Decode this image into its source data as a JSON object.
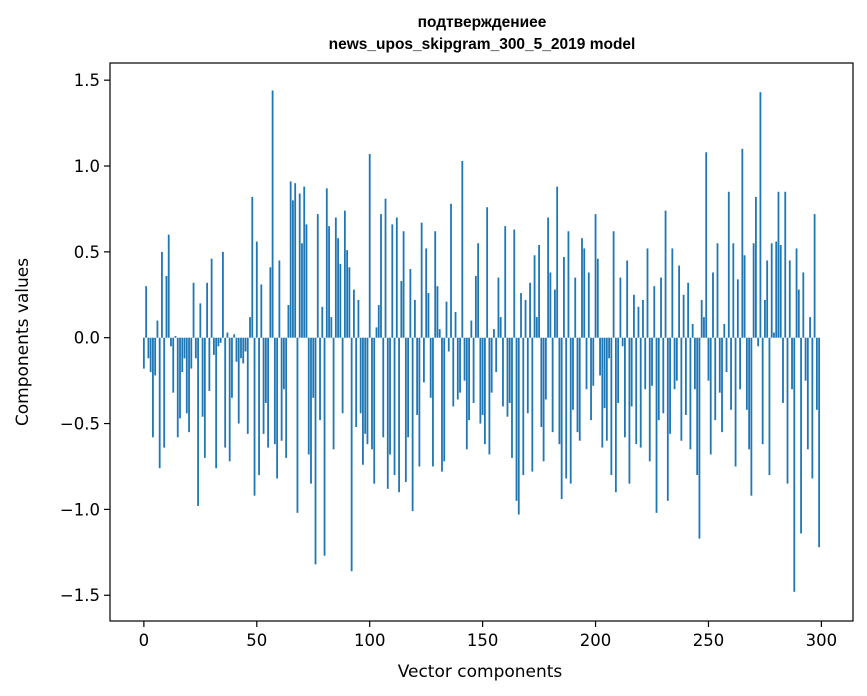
{
  "chart_data": {
    "type": "bar",
    "title": "подтверждениее\nnews_upos_skipgram_300_5_2019 model",
    "title_lines": [
      "подтверждениее",
      "news_upos_skipgram_300_5_2019 model"
    ],
    "xlabel": "Vector components",
    "ylabel": "Components values",
    "xlim": [
      -15,
      314
    ],
    "ylim": [
      -1.65,
      1.6
    ],
    "xticks": [
      0,
      50,
      100,
      150,
      200,
      250,
      300
    ],
    "xtick_labels": [
      "0",
      "50",
      "100",
      "150",
      "200",
      "250",
      "300"
    ],
    "yticks": [
      -1.5,
      -1.0,
      -0.5,
      0.0,
      0.5,
      1.0,
      1.5
    ],
    "ytick_labels": [
      "−1.5",
      "−1.0",
      "−0.5",
      "0.0",
      "0.5",
      "1.0",
      "1.5"
    ],
    "grid": false,
    "bar_color": "#1f77b4",
    "x": [
      0,
      1,
      2,
      3,
      4,
      5,
      6,
      7,
      8,
      9,
      10,
      11,
      12,
      13,
      14,
      15,
      16,
      17,
      18,
      19,
      20,
      21,
      22,
      23,
      24,
      25,
      26,
      27,
      28,
      29,
      30,
      31,
      32,
      33,
      34,
      35,
      36,
      37,
      38,
      39,
      40,
      41,
      42,
      43,
      44,
      45,
      46,
      47,
      48,
      49,
      50,
      51,
      52,
      53,
      54,
      55,
      56,
      57,
      58,
      59,
      60,
      61,
      62,
      63,
      64,
      65,
      66,
      67,
      68,
      69,
      70,
      71,
      72,
      73,
      74,
      75,
      76,
      77,
      78,
      79,
      80,
      81,
      82,
      83,
      84,
      85,
      86,
      87,
      88,
      89,
      90,
      91,
      92,
      93,
      94,
      95,
      96,
      97,
      98,
      99,
      100,
      101,
      102,
      103,
      104,
      105,
      106,
      107,
      108,
      109,
      110,
      111,
      112,
      113,
      114,
      115,
      116,
      117,
      118,
      119,
      120,
      121,
      122,
      123,
      124,
      125,
      126,
      127,
      128,
      129,
      130,
      131,
      132,
      133,
      134,
      135,
      136,
      137,
      138,
      139,
      140,
      141,
      142,
      143,
      144,
      145,
      146,
      147,
      148,
      149,
      150,
      151,
      152,
      153,
      154,
      155,
      156,
      157,
      158,
      159,
      160,
      161,
      162,
      163,
      164,
      165,
      166,
      167,
      168,
      169,
      170,
      171,
      172,
      173,
      174,
      175,
      176,
      177,
      178,
      179,
      180,
      181,
      182,
      183,
      184,
      185,
      186,
      187,
      188,
      189,
      190,
      191,
      192,
      193,
      194,
      195,
      196,
      197,
      198,
      199,
      200,
      201,
      202,
      203,
      204,
      205,
      206,
      207,
      208,
      209,
      210,
      211,
      212,
      213,
      214,
      215,
      216,
      217,
      218,
      219,
      220,
      221,
      222,
      223,
      224,
      225,
      226,
      227,
      228,
      229,
      230,
      231,
      232,
      233,
      234,
      235,
      236,
      237,
      238,
      239,
      240,
      241,
      242,
      243,
      244,
      245,
      246,
      247,
      248,
      249,
      250,
      251,
      252,
      253,
      254,
      255,
      256,
      257,
      258,
      259,
      260,
      261,
      262,
      263,
      264,
      265,
      266,
      267,
      268,
      269,
      270,
      271,
      272,
      273,
      274,
      275,
      276,
      277,
      278,
      279,
      280,
      281,
      282,
      283,
      284,
      285,
      286,
      287,
      288,
      289,
      290,
      291,
      292,
      293,
      294,
      295,
      296,
      297,
      298,
      299
    ],
    "values": [
      -0.18,
      0.3,
      -0.12,
      -0.2,
      -0.58,
      -0.22,
      0.1,
      -0.76,
      0.5,
      -0.64,
      0.36,
      0.6,
      -0.05,
      -0.32,
      0.01,
      -0.58,
      -0.47,
      -0.2,
      -0.12,
      -0.44,
      -0.55,
      -0.18,
      0.32,
      -0.12,
      -0.98,
      0.2,
      -0.46,
      -0.7,
      0.32,
      -0.31,
      0.46,
      -0.1,
      -0.76,
      -0.05,
      -0.03,
      0.5,
      -0.64,
      0.03,
      -0.72,
      -0.35,
      0.02,
      -0.14,
      -0.5,
      -0.12,
      -0.15,
      -0.08,
      -0.56,
      0.12,
      0.82,
      -0.92,
      0.56,
      -0.8,
      0.31,
      -0.56,
      -0.38,
      -0.64,
      0.41,
      1.44,
      -0.62,
      -0.82,
      0.45,
      -0.6,
      -0.3,
      -0.7,
      0.19,
      0.91,
      0.8,
      0.9,
      -1.02,
      0.84,
      0.55,
      0.88,
      0.66,
      -0.68,
      -0.85,
      -0.35,
      -1.32,
      0.72,
      -0.48,
      0.18,
      -1.27,
      0.87,
      0.65,
      0.12,
      -0.65,
      0.7,
      0.58,
      0.43,
      -0.44,
      0.74,
      0.51,
      0.41,
      -1.36,
      0.28,
      -0.52,
      0.22,
      -0.44,
      -0.74,
      -0.56,
      -0.62,
      1.07,
      -0.65,
      -0.85,
      0.06,
      0.19,
      0.72,
      -0.58,
      0.81,
      -0.88,
      -0.68,
      0.66,
      -0.8,
      0.7,
      -0.9,
      0.33,
      0.62,
      -0.84,
      -0.58,
      0.4,
      -1.01,
      0.22,
      -0.45,
      -0.75,
      0.67,
      -0.26,
      0.52,
      0.26,
      -0.35,
      -0.75,
      0.62,
      0.3,
      0.05,
      -0.78,
      -0.72,
      0.21,
      -0.08,
      0.78,
      -0.4,
      0.15,
      -0.36,
      -0.32,
      1.03,
      -0.25,
      -0.65,
      -0.48,
      0.1,
      -0.38,
      0.36,
      0.55,
      -0.5,
      -0.45,
      -0.62,
      0.76,
      -0.68,
      -0.32,
      0.05,
      -0.2,
      0.35,
      0.12,
      -0.4,
      0.65,
      -0.46,
      -0.38,
      -0.7,
      0.63,
      -0.95,
      -1.03,
      0.26,
      -0.8,
      0.22,
      -0.44,
      0.32,
      -0.78,
      0.48,
      0.12,
      0.54,
      -0.52,
      -0.72,
      -0.36,
      0.7,
      0.38,
      -0.55,
      0.28,
      0.88,
      -0.62,
      -0.94,
      0.47,
      -0.82,
      0.62,
      -0.85,
      -0.42,
      0.35,
      -0.55,
      -0.6,
      0.58,
      0.52,
      -0.3,
      0.38,
      -0.48,
      -0.28,
      0.72,
      0.46,
      -0.22,
      -0.64,
      -0.41,
      -0.6,
      -0.12,
      -0.8,
      0.62,
      -0.9,
      -0.38,
      0.35,
      -0.05,
      -0.58,
      0.45,
      -0.85,
      -0.4,
      0.25,
      -0.62,
      0.18,
      -0.64,
      0.22,
      -0.3,
      0.52,
      -0.72,
      -0.28,
      0.3,
      -1.02,
      -0.48,
      0.35,
      -0.44,
      0.74,
      -0.95,
      -0.56,
      0.52,
      -0.3,
      -0.25,
      0.42,
      -0.6,
      0.25,
      -0.45,
      0.32,
      -0.65,
      0.08,
      -0.3,
      -0.8,
      -1.17,
      0.22,
      0.12,
      1.08,
      -0.25,
      -0.68,
      0.38,
      -0.48,
      0.55,
      -0.32,
      -0.55,
      0.08,
      -0.2,
      0.85,
      -0.42,
      0.55,
      -0.75,
      0.34,
      -0.3,
      1.1,
      0.48,
      -0.42,
      -0.65,
      -0.92,
      0.55,
      0.82,
      -0.05,
      1.43,
      -0.62,
      0.22,
      0.45,
      -0.8,
      0.55,
      0.03,
      0.56,
      0.85,
      0.54,
      -0.38,
      0.85,
      -0.85,
      0.45,
      -0.3,
      -1.48,
      0.52,
      0.28,
      -1.14,
      0.38,
      -0.25,
      -0.65,
      0.12,
      -0.82,
      0.72,
      -0.42,
      -1.22
    ]
  }
}
